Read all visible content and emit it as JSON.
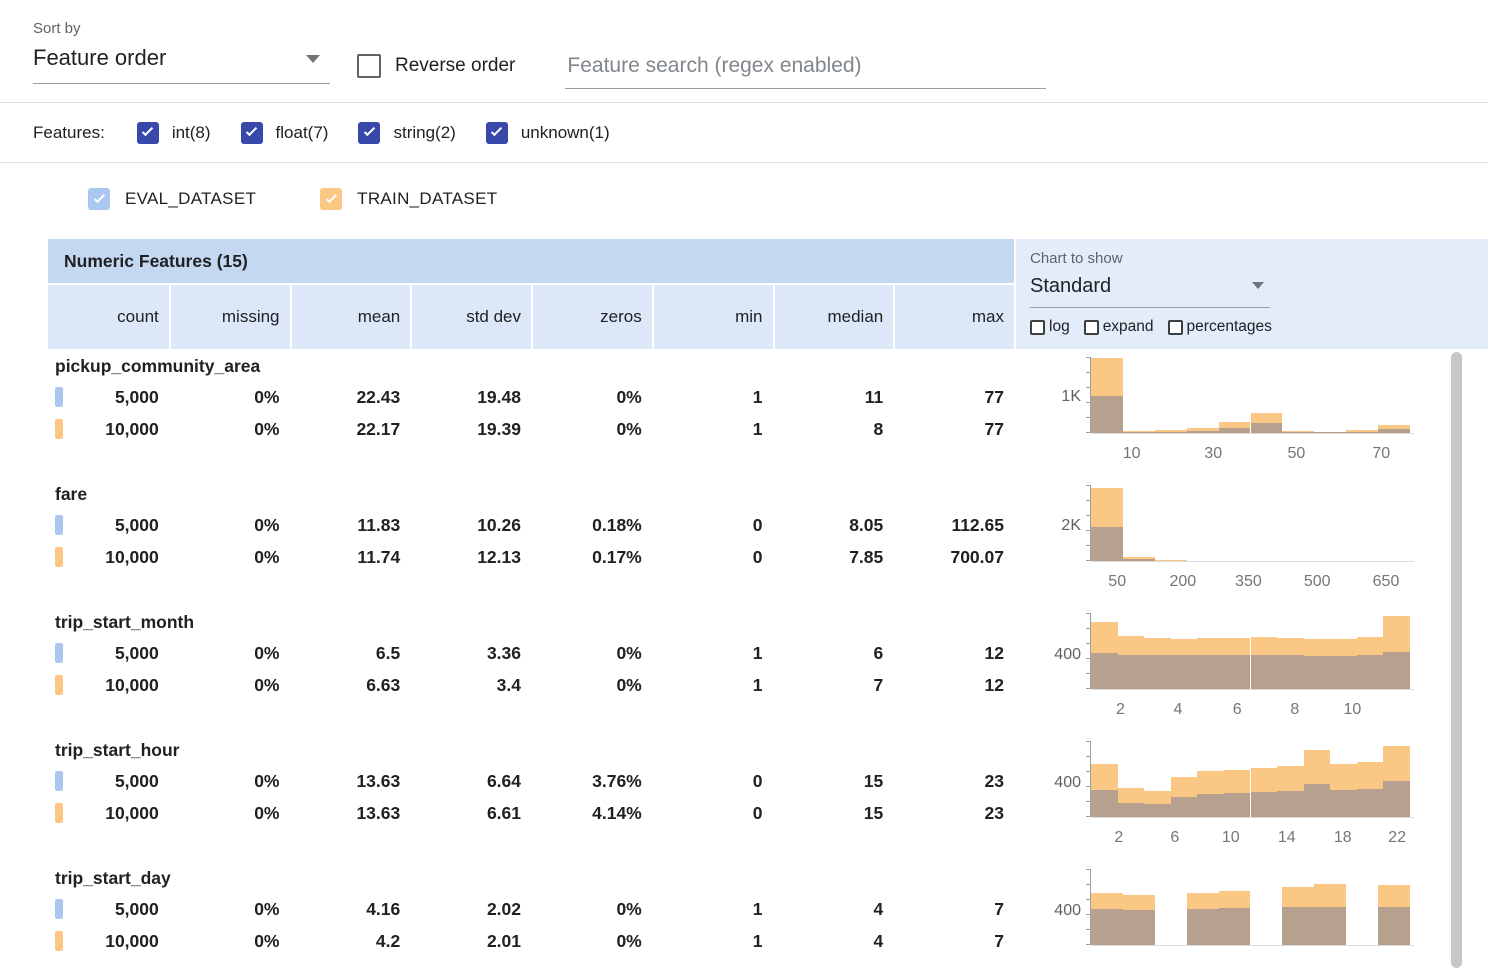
{
  "toolbar": {
    "sort_by_label": "Sort by",
    "sort_by_value": "Feature order",
    "reverse_order_label": "Reverse order",
    "search_placeholder": "Feature search (regex enabled)"
  },
  "features_filter": {
    "label": "Features:",
    "items": [
      {
        "label": "int(8)",
        "checked": true
      },
      {
        "label": "float(7)",
        "checked": true
      },
      {
        "label": "string(2)",
        "checked": true
      },
      {
        "label": "unknown(1)",
        "checked": true
      }
    ]
  },
  "legend": {
    "eval_label": "EVAL_DATASET",
    "train_label": "TRAIN_DATASET"
  },
  "table": {
    "title": "Numeric Features (15)",
    "columns": [
      "count",
      "missing",
      "mean",
      "std dev",
      "zeros",
      "min",
      "median",
      "max"
    ]
  },
  "chart_controls": {
    "label": "Chart to show",
    "selected": "Standard",
    "toggles": [
      {
        "label": "log",
        "checked": false
      },
      {
        "label": "expand",
        "checked": false
      },
      {
        "label": "percentages",
        "checked": false
      }
    ]
  },
  "colors": {
    "eval_series": "#a9c7f0",
    "train_series": "#fbc784",
    "filter_checkbox": "#3949ab",
    "title_bg": "#c5d8f1",
    "subheader_bg": "#dce8f8",
    "panel_bg": "#e3edfa"
  },
  "features": [
    {
      "name": "pickup_community_area",
      "eval": [
        "5,000",
        "0%",
        "22.43",
        "19.48",
        "0%",
        "1",
        "11",
        "77"
      ],
      "train": [
        "10,000",
        "0%",
        "22.17",
        "19.39",
        "0%",
        "1",
        "8",
        "77"
      ],
      "chart": {
        "type": "histogram",
        "y_label": "1K",
        "y_label_value": 1000,
        "y_max": 2100,
        "x_ticks": [
          {
            "label": "10",
            "pct": 13
          },
          {
            "label": "30",
            "pct": 38.5
          },
          {
            "label": "50",
            "pct": 64.5
          },
          {
            "label": "70",
            "pct": 91
          }
        ],
        "train_bins": [
          2060,
          50,
          70,
          130,
          310,
          560,
          55,
          35,
          70,
          210
        ],
        "eval_bins": [
          1010,
          25,
          35,
          65,
          150,
          270,
          28,
          18,
          35,
          105
        ]
      }
    },
    {
      "name": "fare",
      "eval": [
        "5,000",
        "0%",
        "11.83",
        "10.26",
        "0.18%",
        "0",
        "8.05",
        "112.65"
      ],
      "train": [
        "10,000",
        "0%",
        "11.74",
        "12.13",
        "0.17%",
        "0",
        "7.85",
        "700.07"
      ],
      "chart": {
        "type": "histogram",
        "y_label": "2K",
        "y_label_value": 2000,
        "y_max": 4300,
        "x_ticks": [
          {
            "label": "50",
            "pct": 8.5
          },
          {
            "label": "200",
            "pct": 29
          },
          {
            "label": "350",
            "pct": 49.5
          },
          {
            "label": "500",
            "pct": 71
          },
          {
            "label": "650",
            "pct": 92.5
          }
        ],
        "train_bins": [
          4150,
          200,
          45,
          18,
          10,
          6,
          4,
          3,
          2,
          8
        ],
        "eval_bins": [
          1950,
          90,
          22,
          9,
          5,
          3,
          2,
          1,
          1,
          4
        ]
      }
    },
    {
      "name": "trip_start_month",
      "eval": [
        "5,000",
        "0%",
        "6.5",
        "3.36",
        "0%",
        "1",
        "6",
        "12"
      ],
      "train": [
        "10,000",
        "0%",
        "6.63",
        "3.4",
        "0%",
        "1",
        "7",
        "12"
      ],
      "chart": {
        "type": "histogram",
        "y_label": "400",
        "y_label_value": 400,
        "y_max": 900,
        "x_ticks": [
          {
            "label": "2",
            "pct": 9.5
          },
          {
            "label": "4",
            "pct": 27.5
          },
          {
            "label": "6",
            "pct": 46
          },
          {
            "label": "8",
            "pct": 64
          },
          {
            "label": "10",
            "pct": 82
          }
        ],
        "train_bins": [
          790,
          630,
          605,
          595,
          600,
          605,
          615,
          605,
          595,
          590,
          620,
          870
        ],
        "eval_bins": [
          425,
          405,
          398,
          400,
          402,
          400,
          408,
          402,
          396,
          394,
          402,
          435
        ]
      }
    },
    {
      "name": "trip_start_hour",
      "eval": [
        "5,000",
        "0%",
        "13.63",
        "6.64",
        "3.76%",
        "0",
        "15",
        "23"
      ],
      "train": [
        "10,000",
        "0%",
        "13.63",
        "6.61",
        "4.14%",
        "0",
        "15",
        "23"
      ],
      "chart": {
        "type": "histogram",
        "y_label": "400",
        "y_label_value": 400,
        "y_max": 900,
        "x_ticks": [
          {
            "label": "2",
            "pct": 9
          },
          {
            "label": "6",
            "pct": 26.5
          },
          {
            "label": "10",
            "pct": 44
          },
          {
            "label": "14",
            "pct": 61.5
          },
          {
            "label": "18",
            "pct": 79
          },
          {
            "label": "22",
            "pct": 96
          }
        ],
        "train_bins": [
          630,
          340,
          310,
          470,
          545,
          555,
          585,
          605,
          790,
          625,
          655,
          840
        ],
        "eval_bins": [
          320,
          170,
          155,
          235,
          275,
          280,
          295,
          305,
          395,
          315,
          330,
          425
        ]
      }
    },
    {
      "name": "trip_start_day",
      "eval": [
        "5,000",
        "0%",
        "4.16",
        "2.02",
        "0%",
        "1",
        "4",
        "7"
      ],
      "train": [
        "10,000",
        "0%",
        "4.2",
        "2.01",
        "0%",
        "1",
        "4",
        "7"
      ],
      "chart": {
        "type": "histogram",
        "y_label": "400",
        "y_label_value": 400,
        "y_max": 900,
        "x_ticks": [],
        "train_bins": [
          620,
          590,
          0,
          615,
          640,
          0,
          690,
          720,
          0,
          705
        ],
        "eval_bins": [
          430,
          420,
          0,
          425,
          435,
          0,
          445,
          455,
          0,
          450
        ]
      }
    }
  ]
}
